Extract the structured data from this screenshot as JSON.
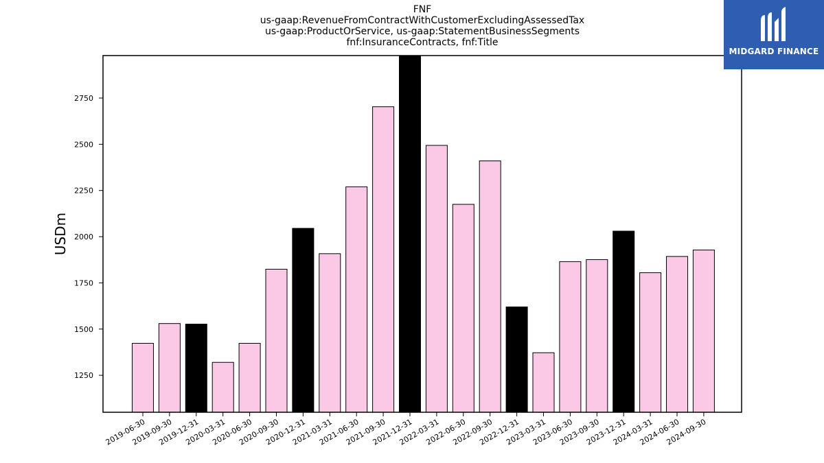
{
  "chart_data": {
    "type": "bar",
    "title_lines": [
      "FNF",
      "us-gaap:RevenueFromContractWithCustomerExcludingAssessedTax",
      "us-gaap:ProductOrService, us-gaap:StatementBusinessSegments",
      "fnf:InsuranceContracts, fnf:Title"
    ],
    "ylabel": "USDm",
    "ylim": [
      1050,
      2980
    ],
    "yticks": [
      1250,
      1500,
      1750,
      2000,
      2250,
      2500,
      2750
    ],
    "categories": [
      "2019-06-30",
      "2019-09-30",
      "2019-12-31",
      "2020-03-31",
      "2020-06-30",
      "2020-09-30",
      "2020-12-31",
      "2021-03-31",
      "2021-06-30",
      "2021-09-30",
      "2021-12-31",
      "2022-03-31",
      "2022-06-30",
      "2022-09-30",
      "2022-12-31",
      "2023-03-31",
      "2023-06-30",
      "2023-09-30",
      "2023-12-31",
      "2024-03-31",
      "2024-06-30",
      "2024-09-30"
    ],
    "values": [
      1423,
      1530,
      1527,
      1320,
      1423,
      1824,
      2045,
      1908,
      2270,
      2703,
      3050,
      2494,
      2175,
      2410,
      1620,
      1372,
      1865,
      1876,
      2030,
      1805,
      1893,
      1928
    ],
    "highlighted": [
      false,
      false,
      true,
      false,
      false,
      false,
      true,
      false,
      false,
      false,
      true,
      false,
      false,
      false,
      true,
      false,
      false,
      false,
      true,
      false,
      false,
      false
    ],
    "colors": {
      "normal": "#fbc9e5",
      "highlight": "#000000",
      "edge": "#000000"
    },
    "grid": false,
    "legend": "none"
  },
  "logo": {
    "text": "MIDGARD FINANCE",
    "bg": "#2f5db0"
  }
}
